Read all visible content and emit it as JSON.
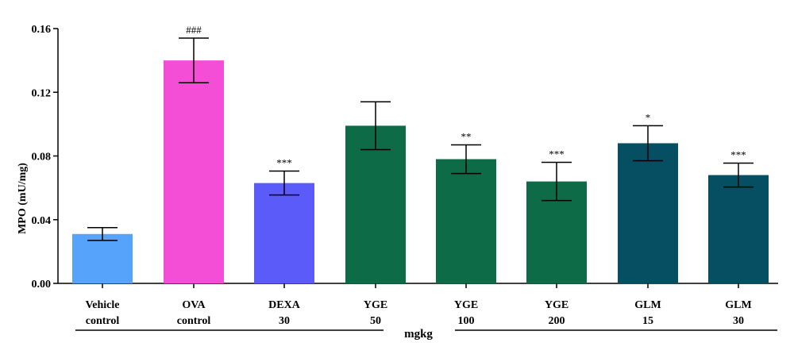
{
  "chart_data": {
    "type": "bar",
    "title": "",
    "ylabel": "MPO (mU/mg)",
    "xlabel": "",
    "unit_label": "mgkg",
    "ylim": [
      0,
      0.16
    ],
    "yticks": [
      "0.00",
      "0.04",
      "0.08",
      "0.12",
      "0.16"
    ],
    "grid": false,
    "categories": [
      {
        "line1": "Vehicle",
        "line2": "control"
      },
      {
        "line1": "OVA",
        "line2": "control"
      },
      {
        "line1": "DEXA",
        "line2": "30"
      },
      {
        "line1": "YGE",
        "line2": "50"
      },
      {
        "line1": "YGE",
        "line2": "100"
      },
      {
        "line1": "YGE",
        "line2": "200"
      },
      {
        "line1": "GLM",
        "line2": "15"
      },
      {
        "line1": "GLM",
        "line2": "30"
      }
    ],
    "values": [
      0.031,
      0.14,
      0.063,
      0.099,
      0.078,
      0.064,
      0.088,
      0.068
    ],
    "errors": [
      0.004,
      0.014,
      0.0075,
      0.015,
      0.009,
      0.012,
      0.011,
      0.0075
    ],
    "significance": [
      "",
      "###",
      "***",
      "",
      "**",
      "***",
      "*",
      "***"
    ],
    "colors": [
      "#55a3fb",
      "#f54ed6",
      "#5b5bf9",
      "#0e6b47",
      "#0e6b47",
      "#0e6b47",
      "#064e61",
      "#064e61"
    ]
  }
}
